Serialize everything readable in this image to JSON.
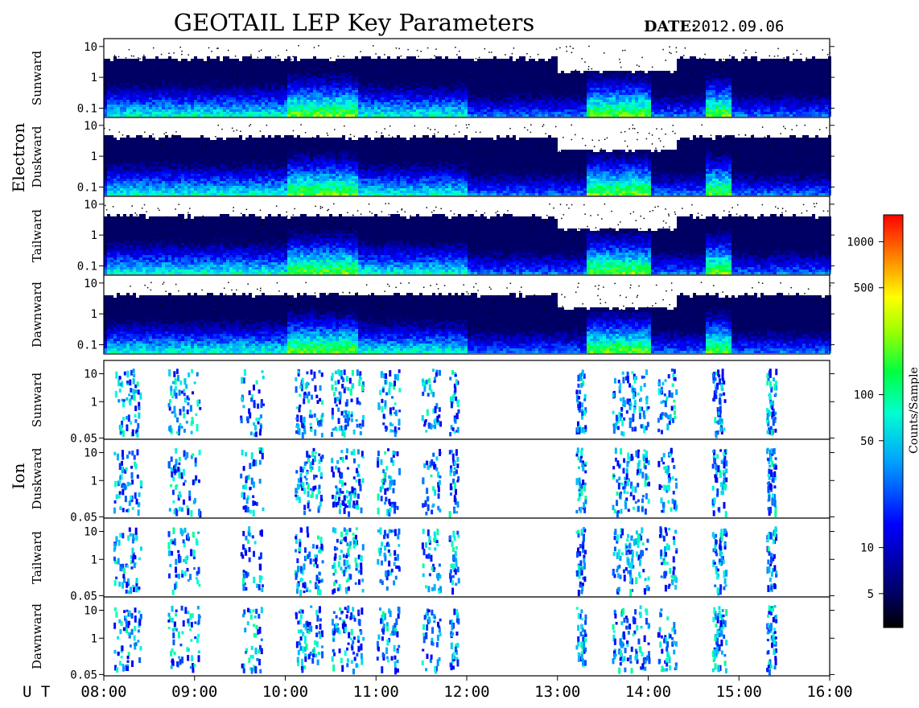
{
  "figure": {
    "title": "GEOTAIL LEP Key Parameters",
    "date_label": "DATE:",
    "date_value": "2012.09.06",
    "x_axis_label": "U T"
  },
  "chart_data": {
    "type": "heatmap",
    "x_ticks": [
      "08:00",
      "09:00",
      "10:00",
      "11:00",
      "12:00",
      "13:00",
      "14:00",
      "15:00",
      "16:00"
    ],
    "x_range_hours": [
      8,
      16
    ],
    "y_scale": "log",
    "colorbar": {
      "label": "Counts/Sample",
      "scale": "log",
      "ticks": [
        5,
        10,
        50,
        100,
        500,
        1000
      ],
      "tick_labels": [
        "5",
        "10",
        "50",
        "100",
        "500",
        "1000"
      ],
      "range": [
        3,
        1500
      ],
      "colormap": [
        "#000000",
        "#0000ff",
        "#00ffff",
        "#00ff00",
        "#ffff00",
        "#ff0000"
      ]
    },
    "groups": [
      {
        "name": "Electron",
        "y_ticks": [
          0.1,
          1,
          10
        ],
        "y_tick_labels": [
          "0.1",
          "1",
          "10"
        ],
        "y_range": [
          0.05,
          18
        ],
        "panels": [
          {
            "name": "Sunward"
          },
          {
            "name": "Duskward"
          },
          {
            "name": "Tailward"
          },
          {
            "name": "Dawnward"
          }
        ]
      },
      {
        "name": "Ion",
        "y_ticks": [
          0.05,
          1,
          10
        ],
        "y_tick_labels": [
          "0.05",
          "1",
          "10"
        ],
        "y_range": [
          0.045,
          30
        ],
        "panels": [
          {
            "name": "Sunward"
          },
          {
            "name": "Duskward"
          },
          {
            "name": "Tailward"
          },
          {
            "name": "Dawnward"
          }
        ]
      }
    ]
  }
}
